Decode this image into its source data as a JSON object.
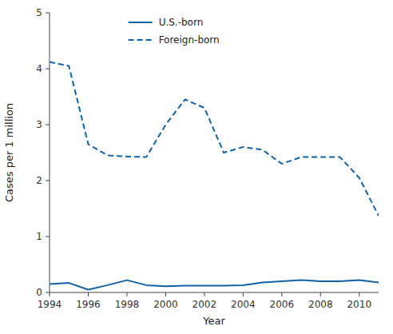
{
  "chart_data": {
    "type": "line",
    "xlabel": "Year",
    "ylabel": "Cases per 1 million",
    "x": [
      1994,
      1995,
      1996,
      1997,
      1998,
      1999,
      2000,
      2001,
      2002,
      2003,
      2004,
      2005,
      2006,
      2007,
      2008,
      2009,
      2010,
      2011
    ],
    "series": [
      {
        "name": "U.S.-born",
        "color": "#1362a8",
        "line_style": "solid",
        "values": [
          0.15,
          0.17,
          0.05,
          0.13,
          0.22,
          0.13,
          0.11,
          0.12,
          0.12,
          0.12,
          0.13,
          0.18,
          0.2,
          0.22,
          0.2,
          0.2,
          0.22,
          0.18
        ]
      },
      {
        "name": "Foreign-born",
        "color": "#1362a8",
        "line_style": "dashed",
        "values": [
          4.12,
          4.05,
          2.65,
          2.45,
          2.43,
          2.42,
          3.0,
          3.45,
          3.3,
          2.5,
          2.6,
          2.55,
          2.3,
          2.42,
          2.42,
          2.42,
          2.05,
          1.37
        ]
      }
    ],
    "xlim": [
      1994,
      2011
    ],
    "xticks": [
      1994,
      1996,
      1998,
      2000,
      2002,
      2004,
      2006,
      2008,
      2010
    ],
    "ylim": [
      0,
      5
    ],
    "yticks": [
      0,
      1,
      2,
      3,
      4,
      5
    ],
    "legend": "upper left",
    "grid": false
  }
}
